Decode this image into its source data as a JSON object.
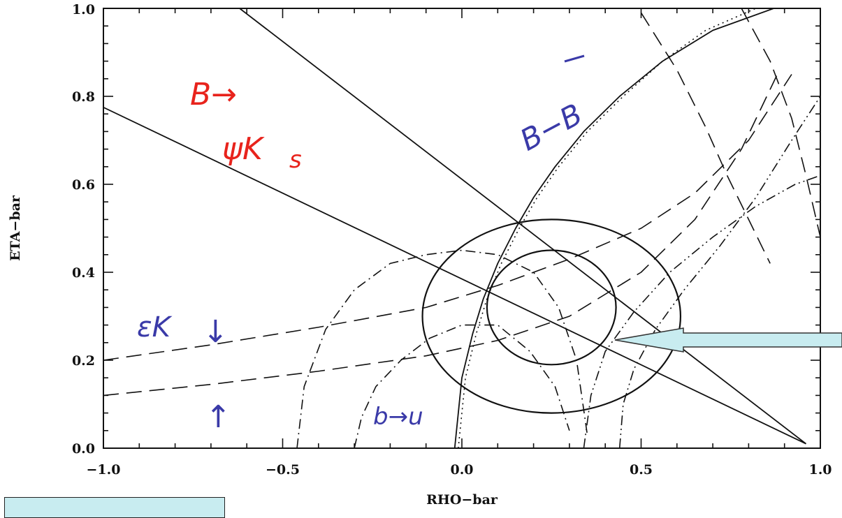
{
  "chart_data": {
    "type": "line",
    "title": "",
    "xlabel": "RHO−bar",
    "ylabel": "ETA−bar",
    "xlim": [
      -1.0,
      1.0
    ],
    "ylim": [
      0.0,
      1.0
    ],
    "x_ticks": [
      "−1.0",
      "−0.5",
      "0.0",
      "0.5",
      "1.0"
    ],
    "y_ticks": [
      "0.0",
      "0.2",
      "0.4",
      "0.6",
      "0.8",
      "1.0"
    ],
    "grid": false,
    "annotations": [
      {
        "text": "B→",
        "color": "#e8231c",
        "x": -0.72,
        "y": 0.82
      },
      {
        "text": "ψK",
        "color": "#e8231c",
        "x": -0.64,
        "y": 0.69
      },
      {
        "text": "s",
        "color": "#e8231c",
        "x": -0.48,
        "y": 0.66
      },
      {
        "text": "B−B",
        "color": "#3a3aa8",
        "x": 0.2,
        "y": 0.72
      },
      {
        "text": "εK",
        "color": "#3a3aa8",
        "x": -0.89,
        "y": 0.26
      },
      {
        "text": "↓",
        "color": "#3a3aa8",
        "x": -0.67,
        "y": 0.26
      },
      {
        "text": "↑",
        "color": "#3a3aa8",
        "x": -0.68,
        "y": 0.05
      },
      {
        "text": "b→u",
        "color": "#3a3aa8",
        "x": -0.24,
        "y": 0.04
      }
    ],
    "series": [
      {
        "style": "solid",
        "x": [
          -1.0,
          0.96
        ],
        "y": [
          0.775,
          0.01
        ]
      },
      {
        "style": "solid",
        "x": [
          -0.62,
          0.96
        ],
        "y": [
          1.0,
          0.01
        ]
      },
      {
        "style": "solid",
        "x": [
          -0.02,
          -0.01,
          0.0,
          0.03,
          0.06,
          0.1,
          0.15,
          0.2,
          0.26,
          0.34,
          0.44,
          0.56,
          0.7,
          0.87,
          1.0
        ],
        "y": [
          0.0,
          0.08,
          0.16,
          0.26,
          0.34,
          0.42,
          0.5,
          0.57,
          0.64,
          0.72,
          0.8,
          0.88,
          0.95,
          1.0,
          1.02
        ]
      },
      {
        "style": "dotted",
        "x": [
          -0.01,
          0.0,
          0.01,
          0.04,
          0.07,
          0.11,
          0.16,
          0.21,
          0.27,
          0.35,
          0.45,
          0.56,
          0.68,
          0.82
        ],
        "y": [
          0.0,
          0.08,
          0.16,
          0.26,
          0.34,
          0.42,
          0.5,
          0.57,
          0.64,
          0.72,
          0.8,
          0.88,
          0.95,
          1.0
        ]
      },
      {
        "style": "ellipse",
        "cx": 0.25,
        "cy": 0.32,
        "rx": 0.18,
        "ry": 0.13
      },
      {
        "style": "ellipse",
        "cx": 0.25,
        "cy": 0.3,
        "rx": 0.36,
        "ry": 0.22
      },
      {
        "style": "dashed",
        "x": [
          -1.0,
          -0.7,
          -0.4,
          -0.1,
          0.1,
          0.3,
          0.5,
          0.65,
          0.8,
          0.92
        ],
        "y": [
          0.2,
          0.235,
          0.275,
          0.32,
          0.37,
          0.43,
          0.5,
          0.58,
          0.7,
          0.85
        ]
      },
      {
        "style": "dashed",
        "x": [
          -1.0,
          -0.7,
          -0.4,
          -0.1,
          0.1,
          0.3,
          0.5,
          0.65,
          0.78,
          0.88
        ],
        "y": [
          0.12,
          0.145,
          0.175,
          0.21,
          0.245,
          0.3,
          0.4,
          0.52,
          0.68,
          0.85
        ]
      },
      {
        "style": "dashed",
        "x": [
          0.78,
          0.86,
          0.92,
          0.96,
          1.0
        ],
        "y": [
          1.0,
          0.88,
          0.75,
          0.62,
          0.48
        ]
      },
      {
        "style": "dashed",
        "x": [
          0.5,
          0.6,
          0.68,
          0.74,
          0.8,
          0.86
        ],
        "y": [
          0.99,
          0.86,
          0.73,
          0.62,
          0.52,
          0.42
        ]
      },
      {
        "style": "dashdot",
        "x": [
          -0.3,
          -0.28,
          -0.24,
          -0.17,
          -0.09,
          0.0,
          0.1,
          0.19,
          0.26,
          0.3
        ],
        "y": [
          0.0,
          0.07,
          0.14,
          0.2,
          0.25,
          0.28,
          0.28,
          0.22,
          0.14,
          0.04
        ]
      },
      {
        "style": "dashdot",
        "x": [
          -0.46,
          -0.44,
          -0.38,
          -0.3,
          -0.2,
          -0.1,
          0.0,
          0.1,
          0.2,
          0.27,
          0.32,
          0.35
        ],
        "y": [
          0.0,
          0.14,
          0.27,
          0.36,
          0.42,
          0.44,
          0.45,
          0.44,
          0.4,
          0.32,
          0.2,
          0.03
        ]
      },
      {
        "style": "dashdotdot",
        "x": [
          0.34,
          0.36,
          0.4,
          0.48,
          0.58,
          0.7,
          0.82,
          0.93,
          1.0
        ],
        "y": [
          0.0,
          0.12,
          0.22,
          0.31,
          0.4,
          0.48,
          0.55,
          0.6,
          0.62
        ]
      },
      {
        "style": "dashdotdot",
        "x": [
          0.44,
          0.45,
          0.48,
          0.54,
          0.62,
          0.72,
          0.82,
          0.92,
          1.0
        ],
        "y": [
          0.0,
          0.1,
          0.18,
          0.27,
          0.36,
          0.46,
          0.57,
          0.7,
          0.8
        ]
      }
    ]
  }
}
